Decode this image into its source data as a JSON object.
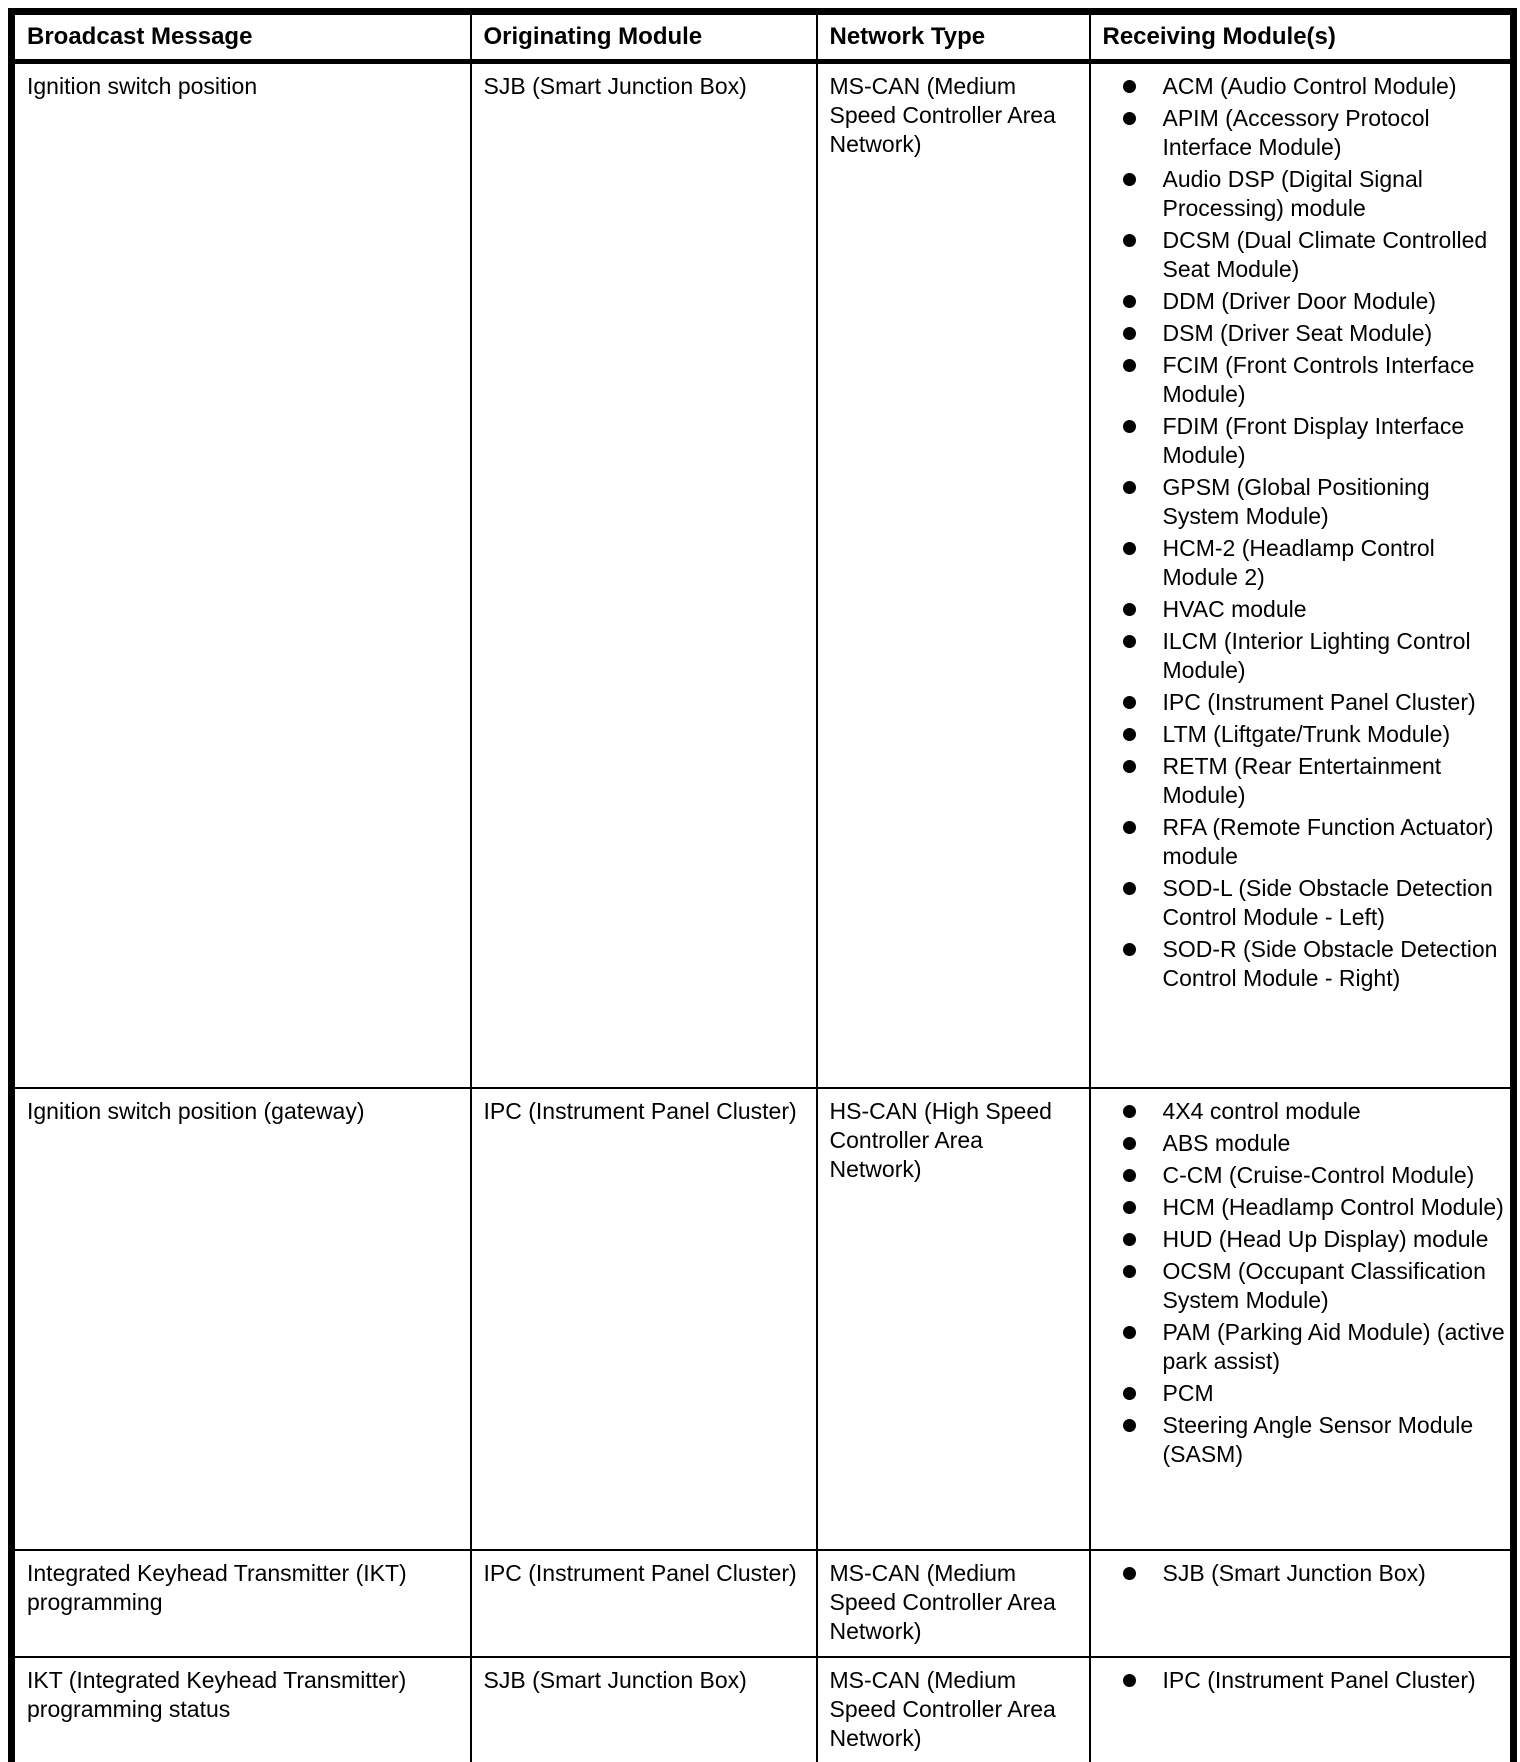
{
  "page": {
    "background_color": "#ffffff",
    "text_color": "#000000"
  },
  "table": {
    "headers": [
      "Broadcast Message",
      "Originating Module",
      "Network Type",
      "Receiving Module(s)"
    ],
    "rows": [
      {
        "broadcast_message": "Ignition switch position",
        "originating_module": "SJB (Smart Junction Box)",
        "network_type": "MS-CAN (Medium Speed Controller Area Network)",
        "receiving_modules": [
          "ACM (Audio Control Module)",
          "APIM (Accessory Protocol Interface Module)",
          "Audio DSP (Digital Signal Processing) module",
          "DCSM (Dual Climate Controlled Seat Module)",
          "DDM (Driver Door Module)",
          "DSM (Driver Seat Module)",
          "FCIM (Front Controls Interface Module)",
          "FDIM (Front Display Interface Module)",
          "GPSM (Global Positioning System Module)",
          "HCM-2 (Headlamp Control Module 2)",
          "HVAC module",
          "ILCM (Interior Lighting Control Module)",
          "IPC (Instrument Panel Cluster)",
          "LTM (Liftgate/Trunk Module)",
          "RETM (Rear Entertainment Module)",
          "RFA (Remote Function Actuator) module",
          "SOD-L (Side Obstacle Detection Control Module - Left)",
          "SOD-R (Side Obstacle Detection Control Module - Right)"
        ]
      },
      {
        "broadcast_message": "Ignition switch position (gateway)",
        "originating_module": "IPC (Instrument Panel Cluster)",
        "network_type": "HS-CAN (High Speed Controller Area Network)",
        "receiving_modules": [
          "4X4 control module",
          "ABS module",
          "C-CM (Cruise-Control Module)",
          "HCM (Headlamp Control Module)",
          "HUD (Head Up Display) module",
          "OCSM (Occupant Classification System Module)",
          "PAM (Parking Aid Module) (active park assist)",
          "PCM",
          "Steering Angle Sensor Module (SASM)"
        ]
      },
      {
        "broadcast_message": "Integrated Keyhead Transmitter (IKT) programming",
        "originating_module": "IPC (Instrument Panel Cluster)",
        "network_type": "MS-CAN (Medium Speed Controller Area Network)",
        "receiving_modules": [
          "SJB (Smart Junction Box)"
        ]
      },
      {
        "broadcast_message": "IKT (Integrated Keyhead Transmitter) programming status",
        "originating_module": "SJB (Smart Junction Box)",
        "network_type": "MS-CAN (Medium Speed Controller Area Network)",
        "receiving_modules": [
          "IPC (Instrument Panel Cluster)"
        ]
      }
    ]
  }
}
